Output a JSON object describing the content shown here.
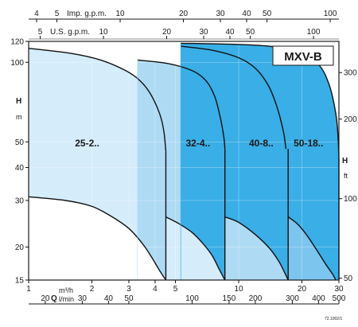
{
  "chart_data": {
    "type": "area",
    "title": "MXV-B",
    "x_scale": "log",
    "y_scale": "log",
    "axes": {
      "bottom_m3h": {
        "label": "Q",
        "unit": "m³/h",
        "range": [
          1,
          30
        ],
        "ticks": [
          {
            "v": 1,
            "label": "1"
          },
          {
            "v": 2,
            "label": "2"
          },
          {
            "v": 3,
            "label": "3"
          },
          {
            "v": 4,
            "label": "4"
          },
          {
            "v": 5,
            "label": "5"
          },
          {
            "v": 10,
            "label": "10"
          },
          {
            "v": 20,
            "label": "20"
          },
          {
            "v": 30,
            "label": "30"
          }
        ]
      },
      "bottom_lmin": {
        "unit": "l/min",
        "ticks": [
          {
            "v": 20,
            "label": "20"
          },
          {
            "v": 30,
            "label": "30"
          },
          {
            "v": 40,
            "label": "40"
          },
          {
            "v": 50,
            "label": "50"
          },
          {
            "v": 100,
            "label": "100"
          },
          {
            "v": 150,
            "label": "150"
          },
          {
            "v": 200,
            "label": "200"
          },
          {
            "v": 300,
            "label": "300"
          },
          {
            "v": 400,
            "label": "400"
          },
          {
            "v": 500,
            "label": "500"
          }
        ]
      },
      "top_imp_gpm": {
        "label": "Imp. g.p.m.",
        "ticks": [
          {
            "v": 4,
            "label": "4"
          },
          {
            "v": 5,
            "label": "5"
          },
          {
            "v": 10,
            "label": "10"
          },
          {
            "v": 20,
            "label": "20"
          },
          {
            "v": 30,
            "label": "30"
          },
          {
            "v": 40,
            "label": "40"
          },
          {
            "v": 50,
            "label": "50"
          },
          {
            "v": 100,
            "label": "100"
          }
        ]
      },
      "top_us_gpm": {
        "label": "U.S. g.p.m.",
        "ticks": [
          {
            "v": 5,
            "label": "5"
          },
          {
            "v": 10,
            "label": "10"
          },
          {
            "v": 20,
            "label": "20"
          },
          {
            "v": 30,
            "label": "30"
          },
          {
            "v": 40,
            "label": "40"
          },
          {
            "v": 50,
            "label": "50"
          },
          {
            "v": 100,
            "label": "100"
          }
        ]
      },
      "left_m": {
        "label": "H",
        "unit": "m",
        "range": [
          15,
          120
        ],
        "ticks": [
          {
            "v": 15,
            "label": "15"
          },
          {
            "v": 20,
            "label": "20"
          },
          {
            "v": 30,
            "label": "30"
          },
          {
            "v": 40,
            "label": "40"
          },
          {
            "v": 50,
            "label": "50"
          },
          {
            "v": 100,
            "label": "100"
          },
          {
            "v": 120,
            "label": "120"
          }
        ]
      },
      "right_ft": {
        "label": "H",
        "unit": "ft",
        "ticks": [
          {
            "v": 50,
            "label": "50"
          },
          {
            "v": 100,
            "label": "100"
          },
          {
            "v": 200,
            "label": "200"
          },
          {
            "v": 300,
            "label": "300"
          }
        ]
      }
    },
    "series": [
      {
        "name": "25-2..",
        "color": "#d5ecfb",
        "top_curve": [
          [
            1,
            113
          ],
          [
            1.6,
            108
          ],
          [
            2.2,
            102
          ],
          [
            2.9,
            93
          ],
          [
            3.4,
            85
          ],
          [
            3.8,
            76
          ],
          [
            4.2,
            64
          ],
          [
            4.4,
            55
          ],
          [
            4.5,
            46
          ]
        ],
        "bottom_curve": [
          [
            1,
            31
          ],
          [
            1.5,
            30
          ],
          [
            2,
            28.5
          ],
          [
            2.5,
            26
          ],
          [
            3,
            23.5
          ],
          [
            3.5,
            20.5
          ],
          [
            3.9,
            18
          ],
          [
            4.2,
            16.3
          ],
          [
            4.5,
            15
          ]
        ],
        "q_max": 4.5
      },
      {
        "name": "32-4..",
        "color": "#aedaf4",
        "top_curve": [
          [
            3.3,
            102
          ],
          [
            4.6,
            99
          ],
          [
            6,
            93
          ],
          [
            7,
            85
          ],
          [
            7.7,
            74
          ],
          [
            8.2,
            61
          ],
          [
            8.5,
            52
          ],
          [
            8.6,
            47
          ]
        ],
        "bottom_curve": [
          [
            4.5,
            26
          ],
          [
            5.2,
            24.5
          ],
          [
            6,
            22.7
          ],
          [
            6.8,
            20.5
          ],
          [
            7.5,
            18.5
          ],
          [
            8.1,
            16.4
          ],
          [
            8.6,
            15
          ]
        ],
        "q_max": 8.6
      },
      {
        "name": "40-8..",
        "color": "#7cc5ee",
        "top_curve": [
          [
            5.3,
            115
          ],
          [
            7.5,
            111
          ],
          [
            10,
            104
          ],
          [
            12,
            95
          ],
          [
            13.8,
            82
          ],
          [
            15.2,
            68
          ],
          [
            16.3,
            55
          ],
          [
            16.8,
            47
          ]
        ],
        "bottom_curve": [
          [
            8.6,
            26
          ],
          [
            10,
            24.8
          ],
          [
            12,
            22.3
          ],
          [
            14,
            19.8
          ],
          [
            15.5,
            17.7
          ],
          [
            16.5,
            16.1
          ],
          [
            17.2,
            15
          ]
        ],
        "q_max": 17.2
      },
      {
        "name": "50-18..",
        "color": "#3aaee6",
        "top_curve": [
          [
            5.3,
            118
          ],
          [
            9.5,
            117
          ],
          [
            14,
            115
          ],
          [
            19,
            110
          ],
          [
            24,
            98
          ],
          [
            27,
            82
          ],
          [
            29,
            64
          ],
          [
            29.7,
            53
          ],
          [
            30,
            43
          ]
        ],
        "bottom_curve": [
          [
            17.2,
            26
          ],
          [
            19,
            24.5
          ],
          [
            21,
            22.3
          ],
          [
            23.5,
            19.5
          ],
          [
            26,
            17.2
          ],
          [
            28,
            15.8
          ],
          [
            29,
            15
          ]
        ],
        "q_max": 30
      }
    ],
    "annotation": "72.1002/1"
  }
}
